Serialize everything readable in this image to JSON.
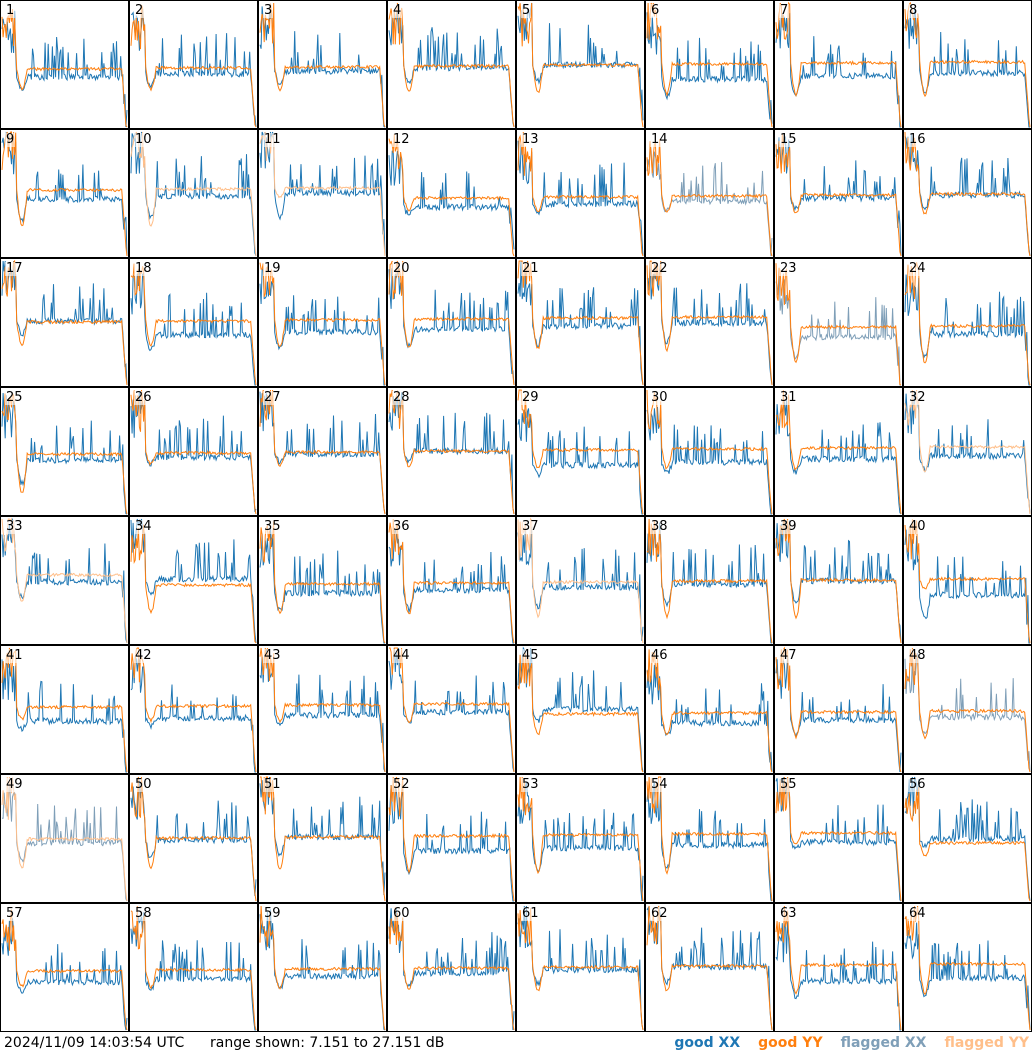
{
  "panels": [
    "1",
    "2",
    "3",
    "4",
    "5",
    "6",
    "7",
    "8",
    "9",
    "10",
    "11",
    "12",
    "13",
    "14",
    "15",
    "16",
    "17",
    "18",
    "19",
    "20",
    "21",
    "22",
    "23",
    "24",
    "25",
    "26",
    "27",
    "28",
    "29",
    "30",
    "31",
    "32",
    "33",
    "34",
    "35",
    "36",
    "37",
    "38",
    "39",
    "40",
    "41",
    "42",
    "43",
    "44",
    "45",
    "46",
    "47",
    "48",
    "49",
    "50",
    "51",
    "52",
    "53",
    "54",
    "55",
    "56",
    "57",
    "58",
    "59",
    "60",
    "61",
    "62",
    "63",
    "64"
  ],
  "footer": {
    "timestamp": "2024/11/09 14:03:54 UTC",
    "range_text": "range shown: 7.151 to 27.151 dB"
  },
  "legend": [
    {
      "label": "good XX",
      "color": "#1f77b4"
    },
    {
      "label": "good YY",
      "color": "#ff7f0e"
    },
    {
      "label": "flagged XX",
      "color": "#7f9fb8"
    },
    {
      "label": "flagged YY",
      "color": "#ffbf8a"
    }
  ],
  "chart_data": {
    "type": "line",
    "range_db": [
      7.151,
      27.151
    ],
    "flagged_xx": [
      "14",
      "23",
      "48",
      "49"
    ],
    "flagged_yy": [
      "10",
      "11",
      "32",
      "33",
      "37",
      "49"
    ],
    "series": [
      {
        "name": "good XX",
        "color": "#1f77b4"
      },
      {
        "name": "good YY",
        "color": "#ff7f0e"
      },
      {
        "name": "flagged XX",
        "color": "#7f9fb8"
      },
      {
        "name": "flagged YY",
        "color": "#ffbf8a"
      }
    ]
  }
}
